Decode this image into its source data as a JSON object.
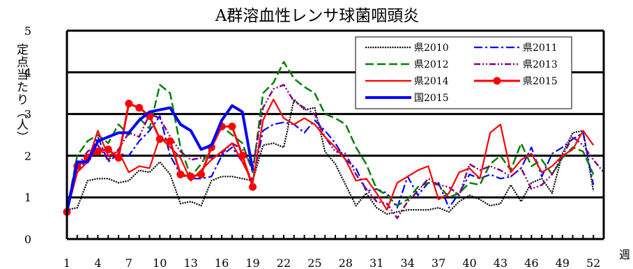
{
  "chart_data": {
    "type": "line",
    "title": "A群溶血性レンサ球菌咽頭炎",
    "ylabel": "定点当たり（人）",
    "xlabel": "週",
    "ylim": [
      0,
      5
    ],
    "yticks": [
      "0",
      "1",
      "2",
      "3",
      "4",
      "5"
    ],
    "xlim": [
      1,
      53
    ],
    "xticks": [
      "1",
      "4",
      "7",
      "10",
      "13",
      "16",
      "19",
      "22",
      "25",
      "28",
      "31",
      "34",
      "37",
      "40",
      "43",
      "46",
      "49",
      "52"
    ],
    "grid": "horizontal",
    "legend_position": "top-right",
    "series": [
      {
        "name": "県2010",
        "color": "#000000",
        "style": "dotted",
        "width": 2.2,
        "values": [
          0.7,
          0.75,
          1.4,
          1.45,
          1.45,
          1.35,
          1.4,
          1.65,
          1.6,
          1.85,
          1.55,
          0.85,
          0.9,
          0.8,
          1.4,
          1.5,
          1.5,
          1.45,
          1.4,
          2.25,
          2.3,
          2.2,
          3.35,
          3.1,
          3.15,
          2.1,
          1.8,
          1.3,
          0.8,
          1.1,
          0.75,
          0.6,
          0.65,
          0.7,
          0.7,
          0.7,
          0.75,
          0.65,
          0.9,
          1.05,
          0.95,
          0.8,
          0.85,
          1.3,
          0.9,
          1.35,
          1.45,
          1.1,
          2.05,
          2.55,
          2.6,
          1.15
        ]
      },
      {
        "name": "県2011",
        "color": "#0000ff",
        "style": "dashdot",
        "width": 2.2,
        "values": [
          0.7,
          1.6,
          1.95,
          2.45,
          1.85,
          2.05,
          2.0,
          2.35,
          2.6,
          2.95,
          2.0,
          1.55,
          1.45,
          1.45,
          1.5,
          2.0,
          2.2,
          1.85,
          1.4,
          2.6,
          2.75,
          2.8,
          2.75,
          2.55,
          2.85,
          2.6,
          2.3,
          1.9,
          1.7,
          1.15,
          1.2,
          1.1,
          0.75,
          1.5,
          1.05,
          1.35,
          1.35,
          0.75,
          1.1,
          1.55,
          1.45,
          1.55,
          1.45,
          1.5,
          1.7,
          2.2,
          1.5,
          2.05,
          2.2,
          2.4,
          2.55,
          1.3
        ]
      },
      {
        "name": "県2012",
        "color": "#008000",
        "style": "dashed",
        "width": 2.5,
        "values": [
          0.7,
          2.0,
          2.35,
          2.5,
          2.3,
          2.75,
          2.5,
          2.9,
          2.65,
          3.7,
          3.5,
          2.2,
          1.5,
          1.8,
          2.2,
          2.7,
          2.5,
          2.3,
          1.6,
          3.5,
          3.75,
          4.25,
          3.85,
          3.65,
          3.5,
          3.0,
          2.9,
          2.75,
          2.2,
          1.8,
          1.2,
          1.05,
          0.8,
          0.95,
          1.25,
          1.35,
          1.3,
          1.0,
          1.1,
          1.35,
          1.3,
          1.8,
          2.0,
          1.65,
          2.3,
          1.75,
          1.9,
          1.55,
          1.95,
          2.2,
          2.1,
          1.55
        ]
      },
      {
        "name": "県2013",
        "color": "#800080",
        "style": "dashdotdot",
        "width": 2.5,
        "values": [
          0.65,
          1.75,
          2.1,
          2.25,
          1.9,
          2.15,
          2.55,
          2.45,
          3.0,
          2.9,
          2.45,
          2.1,
          1.9,
          1.95,
          1.95,
          2.05,
          2.3,
          2.15,
          1.7,
          3.15,
          3.6,
          3.7,
          3.3,
          3.15,
          3.0,
          2.45,
          2.1,
          2.05,
          1.55,
          1.2,
          0.9,
          0.85,
          0.5,
          0.9,
          1.15,
          1.45,
          1.3,
          1.25,
          1.05,
          1.8,
          1.65,
          1.75,
          1.65,
          1.5,
          1.7,
          1.2,
          1.3,
          1.55,
          2.0,
          2.45,
          2.25,
          1.9,
          1.6
        ]
      },
      {
        "name": "県2014",
        "color": "#ff0000",
        "style": "solid",
        "width": 2.2,
        "values": [
          0.65,
          1.6,
          1.85,
          2.6,
          2.0,
          2.1,
          1.6,
          1.75,
          1.7,
          2.45,
          2.2,
          1.95,
          1.4,
          1.65,
          1.9,
          2.1,
          2.3,
          1.85,
          1.35,
          2.85,
          3.35,
          2.9,
          2.75,
          2.9,
          2.75,
          2.45,
          2.2,
          1.9,
          1.4,
          1.45,
          1.1,
          0.7,
          1.35,
          1.5,
          1.65,
          1.75,
          0.95,
          1.1,
          1.6,
          1.7,
          1.45,
          2.55,
          2.75,
          1.6,
          1.9,
          2.05,
          1.6,
          1.75,
          2.0,
          2.15,
          2.6,
          2.25
        ]
      },
      {
        "name": "県2015",
        "color": "#ff0000",
        "style": "solid-marker",
        "width": 3,
        "values": [
          0.65,
          1.75,
          1.95,
          2.1,
          2.15,
          1.95,
          3.25,
          3.15,
          2.95,
          2.4,
          2.35,
          1.55,
          1.5,
          1.55,
          2.2,
          2.7,
          2.7,
          2.0,
          1.25
        ]
      },
      {
        "name": "国2015",
        "color": "#0000ff",
        "style": "solid",
        "width": 4,
        "values": [
          0.65,
          1.85,
          1.85,
          2.35,
          2.45,
          2.55,
          2.55,
          2.85,
          3.05,
          3.1,
          3.15,
          2.75,
          2.6,
          2.15,
          2.25,
          2.85,
          3.2,
          3.05,
          1.65
        ]
      }
    ]
  }
}
